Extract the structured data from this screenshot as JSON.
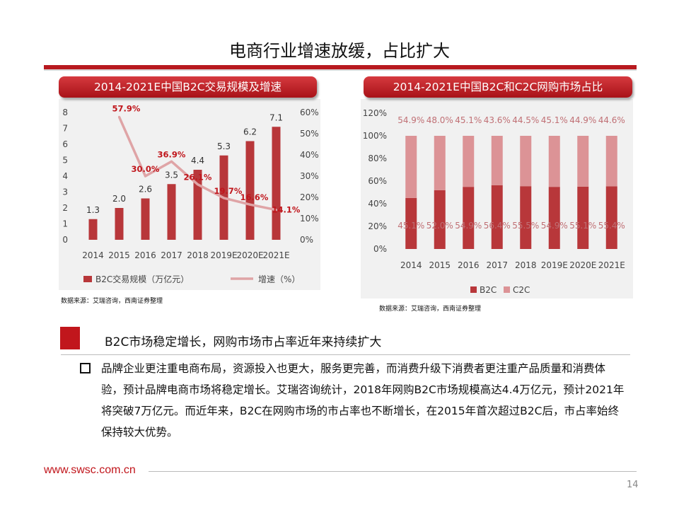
{
  "page": {
    "title": "电商行业增速放缓，占比扩大",
    "sub_heading": "B2C市场稳定增长，网购市场市占率近年来持续扩大",
    "body": "品牌企业更注重电商布局，资源投入也更大，服务更完善，而消费升级下消费者更注重产品质量和消费体验，预计品牌电商市场将稳定增长。艾瑞咨询统计，2018年网购B2C市场规模高达4.4万亿元，预计2021年将突破7万亿元。而近年来，B2C在网购市场的市占率也不断增长，在2015年首次超过B2C后，市占率始终保持较大优势。",
    "footer_url": "www.swsc.com.cn",
    "page_number": "14"
  },
  "chart_left": {
    "header": "2014-2021E中国B2C交易规模及增速",
    "source": "数据来源：艾瑞咨询，西南证券整理"
  },
  "chart_right": {
    "header": "2014-2021E中国B2C和C2C网购市场占比",
    "source": "数据来源：艾瑞咨询，西南证券整理"
  },
  "colors": {
    "dark_red": "#b8373a",
    "light_red": "#dc9396",
    "line_pink": "#dfa4a6",
    "label_red": "#c0161c",
    "brand_red": "#c1161c"
  },
  "chart_data": [
    {
      "type": "bar",
      "categories": [
        "2014",
        "2015",
        "2016",
        "2017",
        "2018",
        "2019E",
        "2020E",
        "2021E"
      ],
      "series": [
        {
          "name": "B2C交易规模（万亿元）",
          "type": "bar",
          "axis": "left",
          "values": [
            1.3,
            2.0,
            2.6,
            3.5,
            4.4,
            5.3,
            6.2,
            7.1
          ]
        },
        {
          "name": "增速（%）",
          "type": "line",
          "axis": "right",
          "values": [
            null,
            57.9,
            30.0,
            36.9,
            26.1,
            19.7,
            16.6,
            14.1
          ],
          "labels": [
            "",
            "57.9%",
            "30.0%",
            "36.9%",
            "26.1%",
            "19.7%",
            "16.6%",
            "14.1%"
          ]
        }
      ],
      "ylim": [
        0,
        8
      ],
      "y_ticks": [
        "0",
        "1",
        "2",
        "3",
        "4",
        "5",
        "6",
        "7",
        "8"
      ],
      "y2lim": [
        0,
        60
      ],
      "y2_ticks": [
        "0%",
        "10%",
        "20%",
        "30%",
        "40%",
        "50%",
        "60%"
      ],
      "bar_labels": [
        "1.3",
        "2.0",
        "2.6",
        "3.5",
        "4.4",
        "5.3",
        "6.2",
        "7.1"
      ],
      "legend": [
        "B2C交易规模（万亿元）",
        "增速（%）"
      ],
      "legend_position": "bottom",
      "grid": false
    },
    {
      "type": "bar",
      "stacked": true,
      "categories": [
        "2014",
        "2015",
        "2016",
        "2017",
        "2018",
        "2019E",
        "2020E",
        "2021E"
      ],
      "series": [
        {
          "name": "B2C",
          "values": [
            45.1,
            52.0,
            54.9,
            56.4,
            55.5,
            54.9,
            55.1,
            55.4
          ],
          "labels": [
            "45.1%",
            "52.0%",
            "54.9%",
            "56.4%",
            "55.5%",
            "54.9%",
            "55.1%",
            "55.4%"
          ]
        },
        {
          "name": "C2C",
          "values": [
            54.9,
            48.0,
            45.1,
            43.6,
            44.5,
            45.1,
            44.9,
            44.6
          ],
          "labels": [
            "54.9%",
            "48.0%",
            "45.1%",
            "43.6%",
            "44.5%",
            "45.1%",
            "44.9%",
            "44.6%"
          ]
        }
      ],
      "ylim": [
        0,
        120
      ],
      "y_ticks": [
        "0%",
        "20%",
        "40%",
        "60%",
        "80%",
        "100%",
        "120%"
      ],
      "legend": [
        "B2C",
        "C2C"
      ],
      "legend_position": "bottom",
      "grid": false
    }
  ]
}
